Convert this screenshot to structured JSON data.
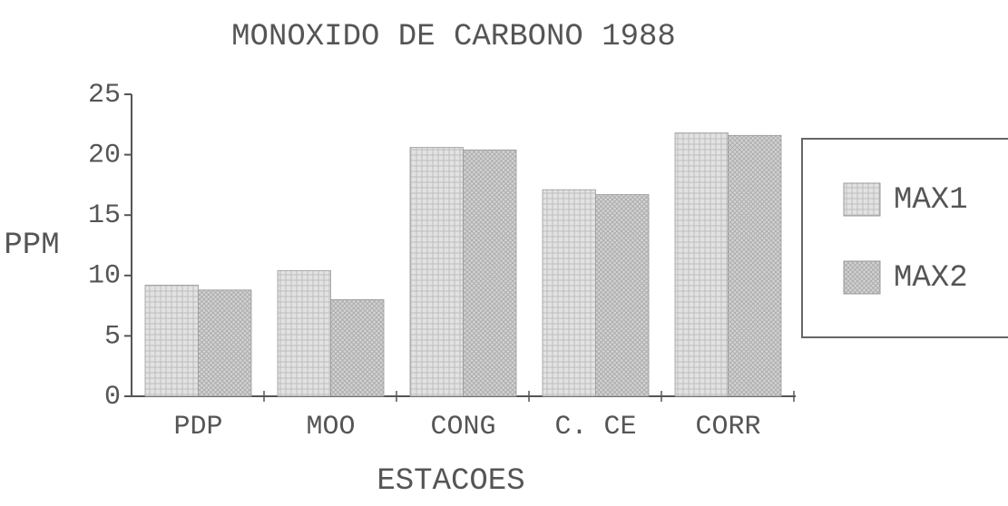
{
  "chart_data": {
    "type": "bar",
    "title": "MONOXIDO DE CARBONO 1988",
    "x_label": "ESTACOES",
    "y_label": "PPM",
    "categories": [
      "PDP",
      "MOO",
      "CONG",
      "C. CE",
      "CORR"
    ],
    "series": [
      {
        "name": "MAX1",
        "color": "#d6d6d6",
        "values": [
          9.2,
          10.4,
          20.6,
          17.1,
          21.8
        ]
      },
      {
        "name": "MAX2",
        "color": "#c4c4c4",
        "values": [
          8.8,
          8,
          20.4,
          16.7,
          21.6
        ]
      }
    ],
    "ylim": [
      0,
      25
    ],
    "yticks": [
      0,
      5,
      10,
      15,
      20,
      25
    ],
    "legend": "right"
  }
}
